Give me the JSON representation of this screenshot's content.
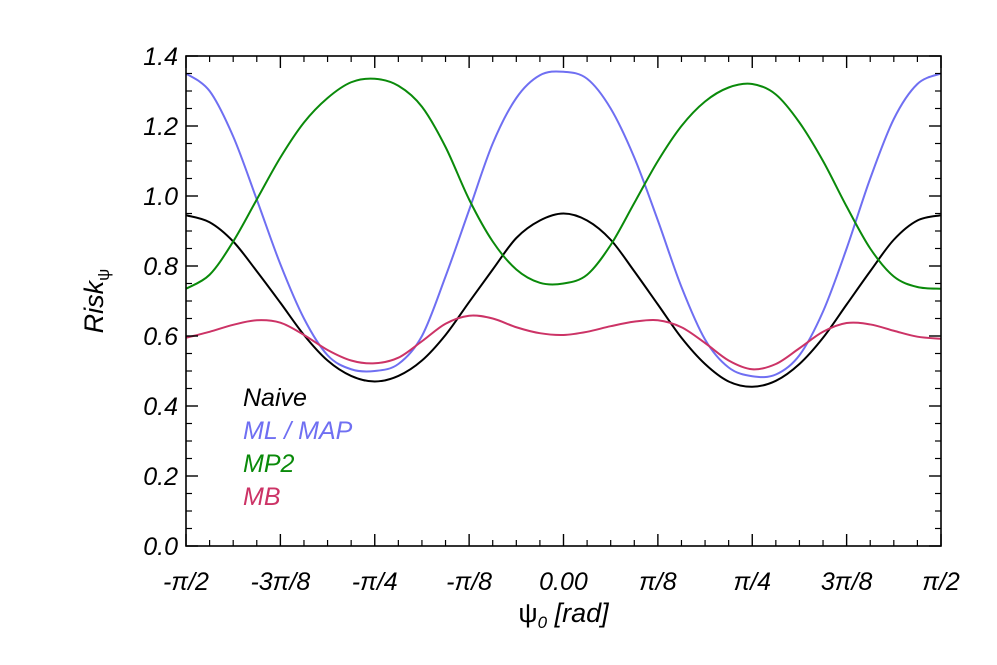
{
  "chart_data": {
    "type": "line",
    "xlabel": {
      "main": "ψ",
      "sub": "0",
      "unit": " [rad]"
    },
    "ylabel": {
      "main": "Risk",
      "sub": "ψ"
    },
    "xlim": [
      -1.5708,
      1.5708
    ],
    "ylim": [
      0.0,
      1.4
    ],
    "yticks": [
      {
        "value": 0.0,
        "label": "0.0"
      },
      {
        "value": 0.2,
        "label": "0.2"
      },
      {
        "value": 0.4,
        "label": "0.4"
      },
      {
        "value": 0.6,
        "label": "0.6"
      },
      {
        "value": 0.8,
        "label": "0.8"
      },
      {
        "value": 1.0,
        "label": "1.0"
      },
      {
        "value": 1.2,
        "label": "1.2"
      },
      {
        "value": 1.4,
        "label": "1.4"
      }
    ],
    "xticks": [
      {
        "value": -1.5708,
        "label": "-π/2"
      },
      {
        "value": -1.1781,
        "label": "-3π/8"
      },
      {
        "value": -0.7854,
        "label": "-π/4"
      },
      {
        "value": -0.3927,
        "label": "-π/8"
      },
      {
        "value": 0.0,
        "label": "0.00"
      },
      {
        "value": 0.3927,
        "label": "π/8"
      },
      {
        "value": 0.7854,
        "label": "π/4"
      },
      {
        "value": 1.1781,
        "label": "3π/8"
      },
      {
        "value": 1.5708,
        "label": "π/2"
      }
    ],
    "grid": false,
    "legend_position": "lower-left",
    "series": [
      {
        "name": "Naive",
        "color": "#000000",
        "x": [
          -1.5708,
          -1.4726,
          -1.3744,
          -1.2763,
          -1.1781,
          -1.0799,
          -0.9817,
          -0.8836,
          -0.7854,
          -0.6872,
          -0.589,
          -0.4909,
          -0.3927,
          -0.2945,
          -0.1963,
          -0.0982,
          0.0,
          0.0982,
          0.1963,
          0.2945,
          0.3927,
          0.4909,
          0.589,
          0.6872,
          0.7854,
          0.8836,
          0.9817,
          1.0799,
          1.1781,
          1.2763,
          1.3744,
          1.4726,
          1.5708
        ],
        "y": [
          0.945,
          0.925,
          0.87,
          0.785,
          0.695,
          0.603,
          0.53,
          0.486,
          0.47,
          0.486,
          0.53,
          0.603,
          0.697,
          0.79,
          0.88,
          0.93,
          0.95,
          0.93,
          0.875,
          0.785,
          0.69,
          0.595,
          0.52,
          0.47,
          0.455,
          0.472,
          0.52,
          0.595,
          0.69,
          0.785,
          0.875,
          0.93,
          0.945
        ]
      },
      {
        "name": "ML / MAP",
        "color": "#6f6ff2",
        "x": [
          -1.5708,
          -1.4726,
          -1.3744,
          -1.2763,
          -1.1781,
          -1.0799,
          -0.9817,
          -0.8836,
          -0.7854,
          -0.6872,
          -0.589,
          -0.4909,
          -0.3927,
          -0.2945,
          -0.1963,
          -0.0982,
          0.0,
          0.0982,
          0.1963,
          0.2945,
          0.3927,
          0.4909,
          0.589,
          0.6872,
          0.7854,
          0.8836,
          0.9817,
          1.0799,
          1.1781,
          1.2763,
          1.3744,
          1.4726,
          1.5708
        ],
        "y": [
          1.35,
          1.3,
          1.17,
          0.99,
          0.805,
          0.65,
          0.545,
          0.505,
          0.5,
          0.52,
          0.6,
          0.77,
          0.96,
          1.15,
          1.28,
          1.345,
          1.355,
          1.335,
          1.25,
          1.11,
          0.93,
          0.74,
          0.59,
          0.51,
          0.485,
          0.49,
          0.545,
          0.67,
          0.85,
          1.05,
          1.22,
          1.32,
          1.35
        ]
      },
      {
        "name": "MP2",
        "color": "#0a8a0a",
        "x": [
          -1.5708,
          -1.4726,
          -1.3744,
          -1.2763,
          -1.1781,
          -1.0799,
          -0.9817,
          -0.8836,
          -0.7854,
          -0.6872,
          -0.589,
          -0.4909,
          -0.3927,
          -0.2945,
          -0.1963,
          -0.0982,
          0.0,
          0.0982,
          0.1963,
          0.2945,
          0.3927,
          0.4909,
          0.589,
          0.6872,
          0.7854,
          0.8836,
          0.9817,
          1.0799,
          1.1781,
          1.2763,
          1.3744,
          1.4726,
          1.5708
        ],
        "y": [
          0.735,
          0.775,
          0.87,
          0.99,
          1.11,
          1.21,
          1.28,
          1.325,
          1.335,
          1.315,
          1.255,
          1.14,
          0.99,
          0.87,
          0.79,
          0.752,
          0.75,
          0.775,
          0.86,
          0.98,
          1.1,
          1.2,
          1.27,
          1.31,
          1.32,
          1.29,
          1.21,
          1.1,
          0.97,
          0.85,
          0.77,
          0.74,
          0.735
        ]
      },
      {
        "name": "MB",
        "color": "#cc3366",
        "x": [
          -1.5708,
          -1.4726,
          -1.3744,
          -1.2763,
          -1.1781,
          -1.0799,
          -0.9817,
          -0.8836,
          -0.7854,
          -0.6872,
          -0.589,
          -0.4909,
          -0.3927,
          -0.2945,
          -0.1963,
          -0.0982,
          0.0,
          0.0982,
          0.1963,
          0.2945,
          0.3927,
          0.4909,
          0.589,
          0.6872,
          0.7854,
          0.8836,
          0.9817,
          1.0799,
          1.1781,
          1.2763,
          1.3744,
          1.4726,
          1.5708
        ],
        "y": [
          0.595,
          0.612,
          0.632,
          0.645,
          0.638,
          0.603,
          0.56,
          0.53,
          0.522,
          0.538,
          0.585,
          0.635,
          0.658,
          0.65,
          0.625,
          0.608,
          0.603,
          0.612,
          0.628,
          0.641,
          0.645,
          0.625,
          0.58,
          0.53,
          0.505,
          0.52,
          0.565,
          0.612,
          0.637,
          0.633,
          0.615,
          0.598,
          0.592
        ]
      }
    ]
  }
}
